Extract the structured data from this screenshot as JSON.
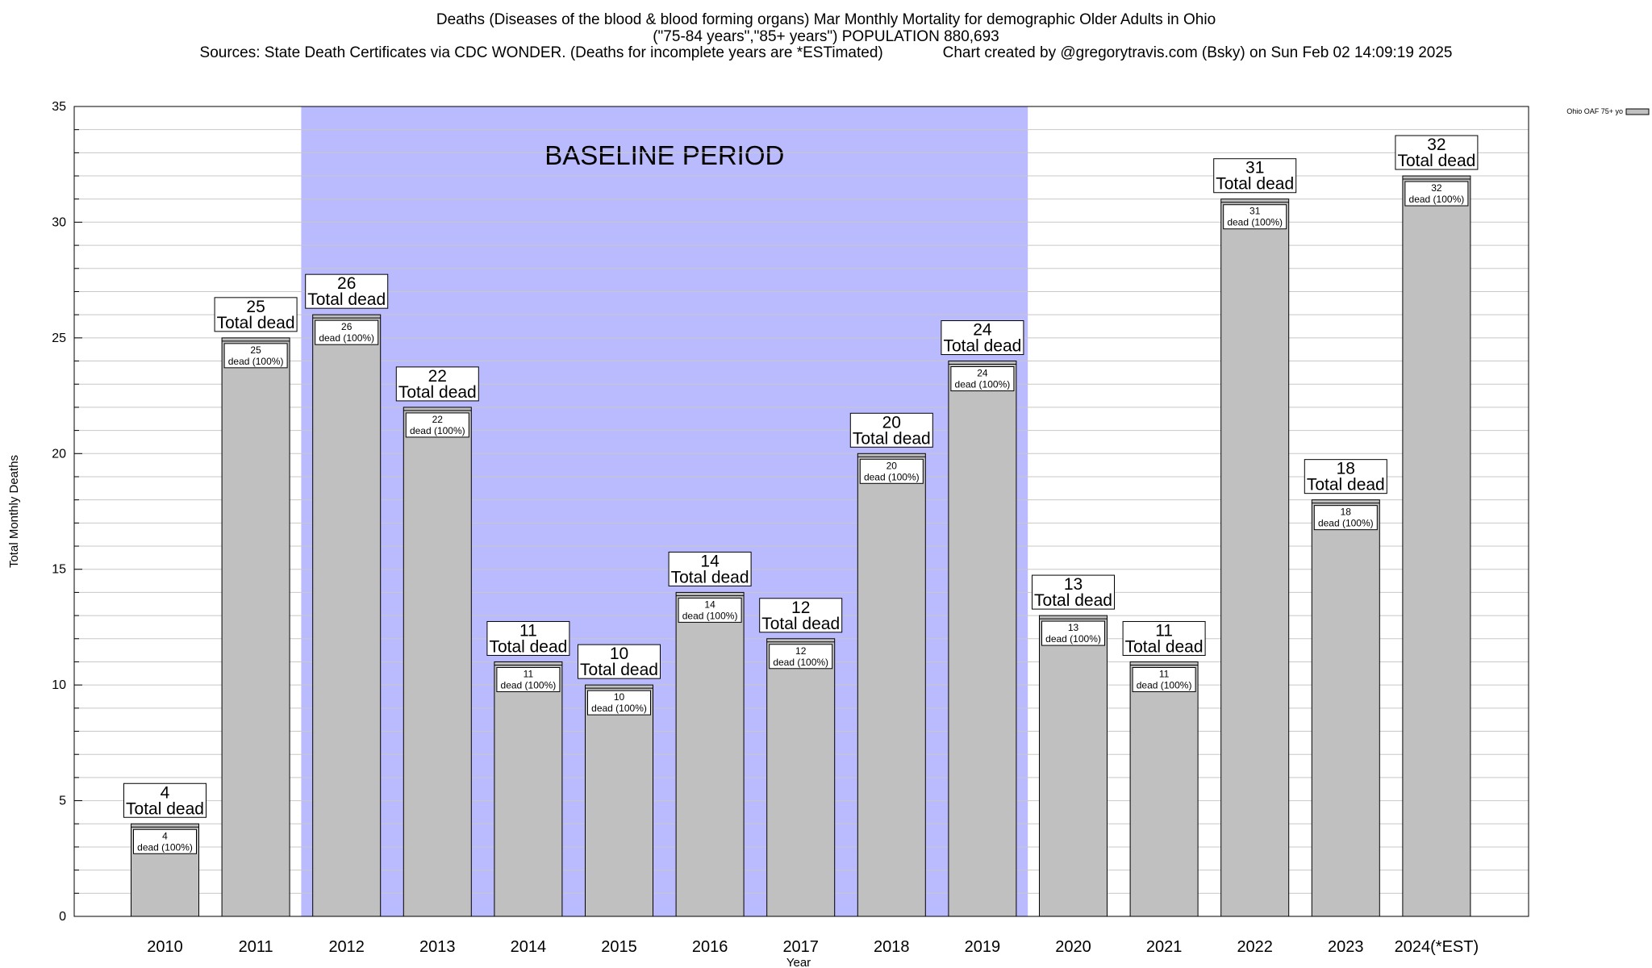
{
  "title": {
    "line1": "Deaths (Diseases of the blood & blood forming organs) Mar Monthly Mortality for demographic Older Adults in Ohio",
    "line2": "(\"75-84 years\",\"85+ years\") POPULATION 880,693",
    "line3": "Sources: State Death Certificates via CDC WONDER. (Deaths for incomplete years are *ESTimated)              Chart created by @gregorytravis.com (Bsky) on Sun Feb 02 14:09:19 2025"
  },
  "chart_data": {
    "type": "bar",
    "xlabel": "Year",
    "ylabel": "Total Monthly Deaths",
    "ylim": [
      0,
      35
    ],
    "yticks": [
      0,
      5,
      10,
      15,
      20,
      25,
      30,
      35
    ],
    "grid": true,
    "legend": {
      "position": "top-right",
      "label": "Ohio OAF 75+ yo"
    },
    "categories": [
      "2010",
      "2011",
      "2012",
      "2013",
      "2014",
      "2015",
      "2016",
      "2017",
      "2018",
      "2019",
      "2020",
      "2021",
      "2022",
      "2023",
      "2024(*EST)"
    ],
    "series": [
      {
        "name": "Ohio OAF 75+ yo",
        "values": [
          4,
          25,
          26,
          22,
          11,
          10,
          14,
          12,
          20,
          24,
          13,
          11,
          31,
          18,
          32
        ]
      }
    ],
    "labels": {
      "total_suffix": "Total dead",
      "inner_suffix": "dead (100%)"
    },
    "baseline": {
      "label": "BASELINE PERIOD",
      "start": "2012",
      "end": "2019"
    },
    "colors": {
      "bar": "#c0c0c0",
      "baseline_band": "#babaff"
    }
  }
}
